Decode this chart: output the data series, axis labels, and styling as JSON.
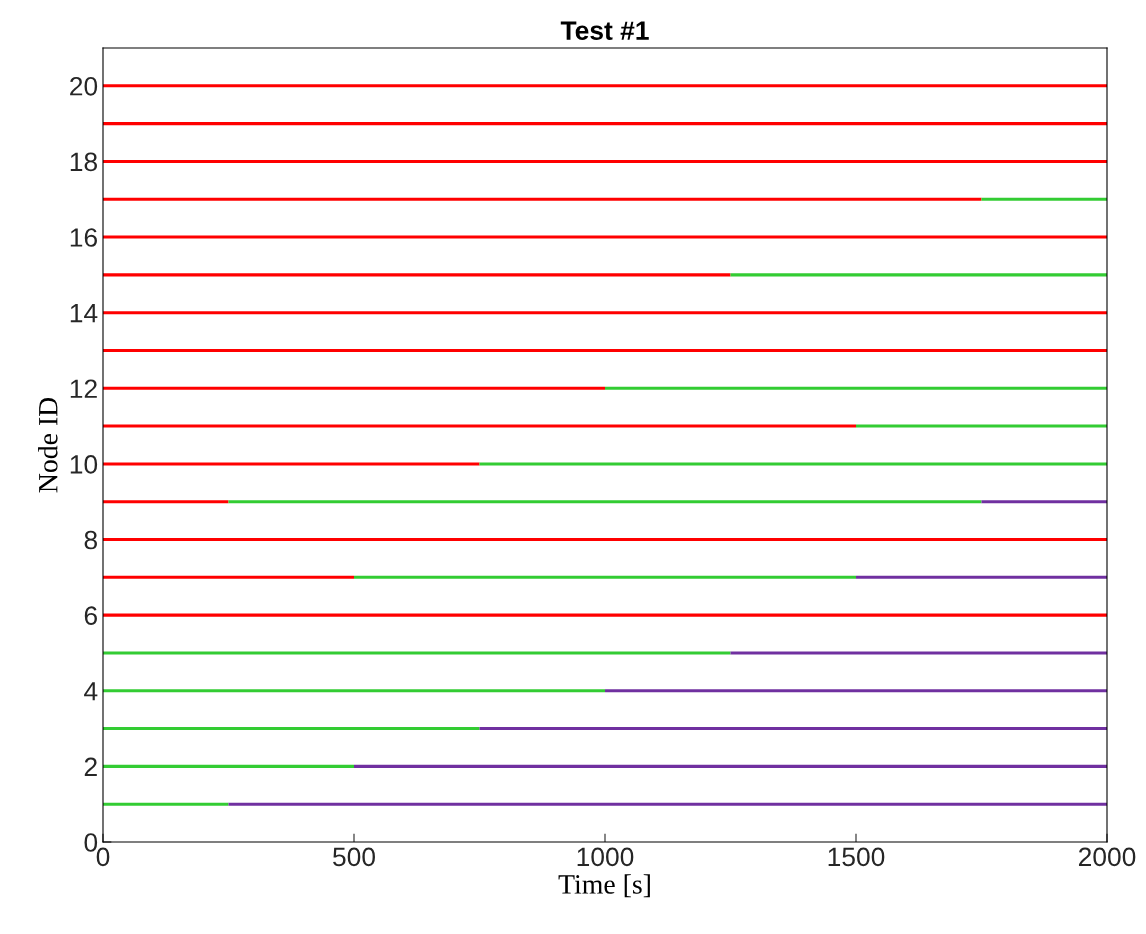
{
  "chart_data": {
    "type": "line",
    "title": "Test #1",
    "xlabel": "Time [s]",
    "ylabel": "Node ID",
    "xlim": [
      0,
      2000
    ],
    "xticks": [
      0,
      500,
      1000,
      1500,
      2000
    ],
    "ylim": [
      0,
      21
    ],
    "yticks": [
      0,
      2,
      4,
      6,
      8,
      10,
      12,
      14,
      16,
      18,
      20
    ],
    "line_style": "solid",
    "series": [
      {
        "color": "#ff0000",
        "x": [
          0,
          2000
        ],
        "values": [
          20,
          20
        ]
      },
      {
        "color": "#ff0000",
        "x": [
          0,
          2000
        ],
        "values": [
          19,
          19
        ]
      },
      {
        "color": "#ff0000",
        "x": [
          0,
          2000
        ],
        "values": [
          18,
          18
        ]
      },
      {
        "color": "#ff0000",
        "x": [
          0,
          1750
        ],
        "values": [
          17,
          17
        ]
      },
      {
        "color": "#33cc33",
        "x": [
          1750,
          2000
        ],
        "values": [
          17,
          17
        ]
      },
      {
        "color": "#ff0000",
        "x": [
          0,
          2000
        ],
        "values": [
          16,
          16
        ]
      },
      {
        "color": "#ff0000",
        "x": [
          0,
          1250
        ],
        "values": [
          15,
          15
        ]
      },
      {
        "color": "#33cc33",
        "x": [
          1250,
          2000
        ],
        "values": [
          15,
          15
        ]
      },
      {
        "color": "#ff0000",
        "x": [
          0,
          2000
        ],
        "values": [
          14,
          14
        ]
      },
      {
        "color": "#ff0000",
        "x": [
          0,
          2000
        ],
        "values": [
          13,
          13
        ]
      },
      {
        "color": "#ff0000",
        "x": [
          0,
          1000
        ],
        "values": [
          12,
          12
        ]
      },
      {
        "color": "#33cc33",
        "x": [
          1000,
          2000
        ],
        "values": [
          12,
          12
        ]
      },
      {
        "color": "#ff0000",
        "x": [
          0,
          1500
        ],
        "values": [
          11,
          11
        ]
      },
      {
        "color": "#33cc33",
        "x": [
          1500,
          2000
        ],
        "values": [
          11,
          11
        ]
      },
      {
        "color": "#ff0000",
        "x": [
          0,
          750
        ],
        "values": [
          10,
          10
        ]
      },
      {
        "color": "#33cc33",
        "x": [
          750,
          2000
        ],
        "values": [
          10,
          10
        ]
      },
      {
        "color": "#ff0000",
        "x": [
          0,
          250
        ],
        "values": [
          9,
          9
        ]
      },
      {
        "color": "#33cc33",
        "x": [
          250,
          1750
        ],
        "values": [
          9,
          9
        ]
      },
      {
        "color": "#7030a0",
        "x": [
          1750,
          2000
        ],
        "values": [
          9,
          9
        ]
      },
      {
        "color": "#ff0000",
        "x": [
          0,
          2000
        ],
        "values": [
          8,
          8
        ]
      },
      {
        "color": "#ff0000",
        "x": [
          0,
          500
        ],
        "values": [
          7,
          7
        ]
      },
      {
        "color": "#33cc33",
        "x": [
          500,
          1500
        ],
        "values": [
          7,
          7
        ]
      },
      {
        "color": "#7030a0",
        "x": [
          1500,
          2000
        ],
        "values": [
          7,
          7
        ]
      },
      {
        "color": "#ff0000",
        "x": [
          0,
          2000
        ],
        "values": [
          6,
          6
        ]
      },
      {
        "color": "#33cc33",
        "x": [
          0,
          1250
        ],
        "values": [
          5,
          5
        ]
      },
      {
        "color": "#7030a0",
        "x": [
          1250,
          2000
        ],
        "values": [
          5,
          5
        ]
      },
      {
        "color": "#33cc33",
        "x": [
          0,
          1000
        ],
        "values": [
          4,
          4
        ]
      },
      {
        "color": "#7030a0",
        "x": [
          1000,
          2000
        ],
        "values": [
          4,
          4
        ]
      },
      {
        "color": "#33cc33",
        "x": [
          0,
          750
        ],
        "values": [
          3,
          3
        ]
      },
      {
        "color": "#7030a0",
        "x": [
          750,
          2000
        ],
        "values": [
          3,
          3
        ]
      },
      {
        "color": "#33cc33",
        "x": [
          0,
          500
        ],
        "values": [
          2,
          2
        ]
      },
      {
        "color": "#7030a0",
        "x": [
          500,
          2000
        ],
        "values": [
          2,
          2
        ]
      },
      {
        "color": "#33cc33",
        "x": [
          0,
          250
        ],
        "values": [
          1,
          1
        ]
      },
      {
        "color": "#7030a0",
        "x": [
          250,
          2000
        ],
        "values": [
          1,
          1
        ]
      }
    ]
  }
}
